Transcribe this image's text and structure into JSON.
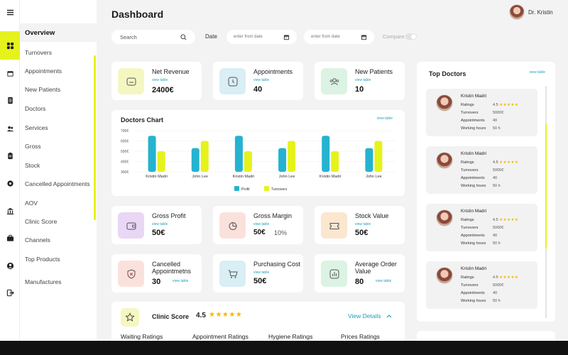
{
  "header": {
    "title": "Dashboard",
    "user_name": "Dr. Kristin",
    "search_placeholder": "Search",
    "date_label": "Date",
    "date_from_placeholder": "enter from date",
    "date_to_placeholder": "enter from date",
    "compare_label": "Compare",
    "compare_on": false
  },
  "rail_icons": [
    "menu-icon",
    "grid-icon",
    "calendar-icon",
    "document-icon",
    "users-icon",
    "clipboard-icon",
    "settings-icon",
    "bank-icon",
    "briefcase-icon",
    "user-icon",
    "logout-icon"
  ],
  "menu": {
    "items": [
      "Overview",
      "Turnovers",
      "Appointments",
      "New Patients",
      "Doctors",
      "Services",
      "Gross",
      "Stock",
      "Cancelled Appointments",
      "AOV",
      "Clinic Score",
      "Channels",
      "Top Products",
      "Manufactures"
    ]
  },
  "kpis": {
    "net_revenue": {
      "title": "Net Revenue",
      "link": "view table",
      "value": "2400€"
    },
    "appointments": {
      "title": "Appointments",
      "link": "view table",
      "value": "40"
    },
    "new_patients": {
      "title": "New Patients",
      "link": "view table",
      "value": "10"
    },
    "gross_profit": {
      "title": "Gross Profit",
      "link": "view table",
      "value": "50€"
    },
    "gross_margin": {
      "title": "Gross Margin",
      "link": "view table",
      "value": "50€",
      "percent": "10%"
    },
    "stock_value": {
      "title": "Stock Value",
      "link": "view table",
      "value": "50€"
    },
    "cancelled": {
      "title_line1": "Cancelled",
      "title_line2": "Appointmetns",
      "link": "view table",
      "value": "30"
    },
    "purchasing": {
      "title": "Purchasing Cost",
      "link": "view table",
      "value": "50€"
    },
    "aov": {
      "title_line1": "Average Order",
      "title_line2": "Value",
      "link": "view table",
      "value": "80"
    }
  },
  "chart_data": {
    "type": "bar",
    "title": "Doctors Chart",
    "link": "view table",
    "categories": [
      "Kristin Madri",
      "John Lee",
      "Kristin Madri",
      "John Lee",
      "Kristin Madri",
      "John Lee"
    ],
    "series": [
      {
        "name": "Profit",
        "color": "#25b3cf",
        "values": [
          650,
          530,
          650,
          530,
          650,
          530
        ]
      },
      {
        "name": "Turnovers",
        "color": "#e6f21c",
        "values": [
          500,
          600,
          500,
          600,
          500,
          600
        ]
      }
    ],
    "y_ticks": [
      "700€",
      "600€",
      "500€",
      "400€",
      "300€"
    ],
    "ylim": [
      300,
      700
    ],
    "legend_position": "bottom"
  },
  "top_doctors": {
    "title": "Top Doctors",
    "link": "view table",
    "labels": {
      "ratings": "Ratings",
      "turnovers": "Turnovers",
      "appointments": "Appointments",
      "hours": "Working hours"
    },
    "doctors": [
      {
        "name": "Kristin Madri",
        "rating": "4.5",
        "stars": "★★★★★",
        "turnovers": "5000€",
        "appointments": "40",
        "hours": "50 h"
      },
      {
        "name": "Kristin Madri",
        "rating": "4.5",
        "stars": "★★★★★",
        "turnovers": "5000€",
        "appointments": "40",
        "hours": "50 h"
      },
      {
        "name": "Kristin Madri",
        "rating": "4.5",
        "stars": "★★★★★",
        "turnovers": "5000€",
        "appointments": "40",
        "hours": "50 h"
      },
      {
        "name": "Kristin Madri",
        "rating": "4.5",
        "stars": "★★★★★",
        "turnovers": "5000€",
        "appointments": "40",
        "hours": "50 h"
      }
    ]
  },
  "clinic_score": {
    "title": "Clinic Score",
    "score": "4.5",
    "stars": "★★★★★",
    "link": "View Details",
    "columns": [
      "Waiting Ratings",
      "Appointment Ratings",
      "Hygiene Ratings",
      "Prices Ratings"
    ]
  },
  "colors": {
    "accent": "#e6f21c",
    "link": "#1f9fbf",
    "profit": "#25b3cf",
    "turnovers": "#e6f21c"
  }
}
